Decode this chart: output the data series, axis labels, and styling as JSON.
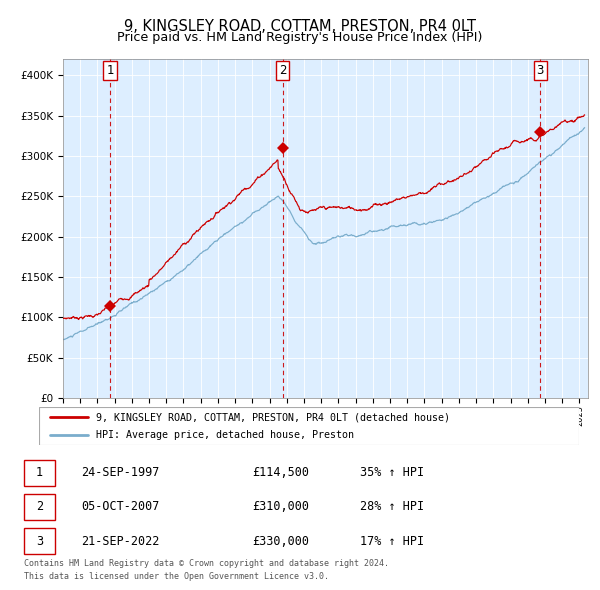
{
  "title": "9, KINGSLEY ROAD, COTTAM, PRESTON, PR4 0LT",
  "subtitle": "Price paid vs. HM Land Registry's House Price Index (HPI)",
  "legend_line1": "9, KINGSLEY ROAD, COTTAM, PRESTON, PR4 0LT (detached house)",
  "legend_line2": "HPI: Average price, detached house, Preston",
  "footer1": "Contains HM Land Registry data © Crown copyright and database right 2024.",
  "footer2": "This data is licensed under the Open Government Licence v3.0.",
  "table": [
    {
      "num": "1",
      "date": "24-SEP-1997",
      "price": "£114,500",
      "hpi": "35% ↑ HPI"
    },
    {
      "num": "2",
      "date": "05-OCT-2007",
      "price": "£310,000",
      "hpi": "28% ↑ HPI"
    },
    {
      "num": "3",
      "date": "21-SEP-2022",
      "price": "£330,000",
      "hpi": "17% ↑ HPI"
    }
  ],
  "purchase_markers": [
    {
      "year": 1997.73,
      "value": 114500
    },
    {
      "year": 2007.76,
      "value": 310000
    },
    {
      "year": 2022.72,
      "value": 330000
    }
  ],
  "vline_years": [
    1997.73,
    2007.76,
    2022.72
  ],
  "vline_labels": [
    "1",
    "2",
    "3"
  ],
  "xlim": [
    1995.0,
    2025.5
  ],
  "ylim": [
    0,
    420000
  ],
  "yticks": [
    0,
    50000,
    100000,
    150000,
    200000,
    250000,
    300000,
    350000,
    400000
  ],
  "red_color": "#cc0000",
  "blue_color": "#7aadcc",
  "bg_color": "#ddeeff",
  "grid_color": "#ffffff"
}
